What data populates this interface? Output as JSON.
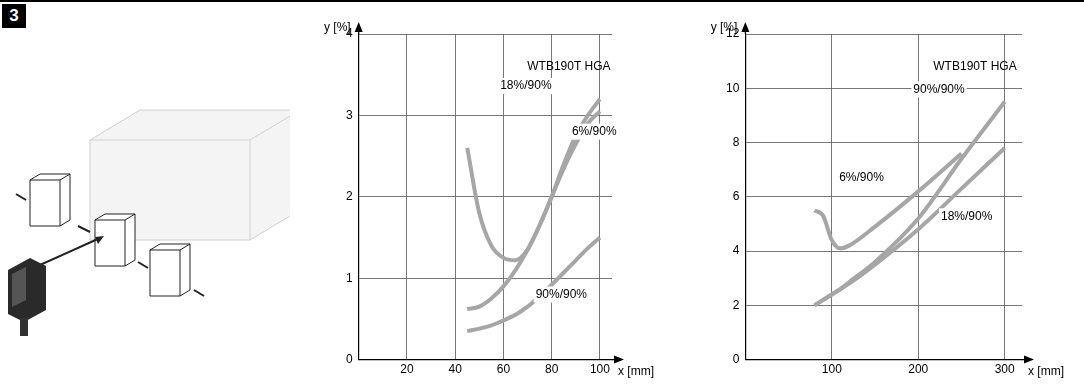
{
  "figure_label": "3",
  "chart_data": [
    {
      "type": "line",
      "title": "WTB190T HGA",
      "xlabel": "x [mm]",
      "ylabel": "y [%]",
      "x": [
        45,
        50,
        55,
        60,
        65,
        70,
        75,
        80,
        85,
        90,
        95,
        100
      ],
      "series": [
        {
          "name": "18%/90%",
          "color": "#a6a6a6",
          "values": [
            2.6,
            1.8,
            1.4,
            1.25,
            1.22,
            1.35,
            1.65,
            2.0,
            2.4,
            2.75,
            3.0,
            3.2
          ]
        },
        {
          "name": "6%/90%",
          "color": "#a6a6a6",
          "values": [
            0.62,
            0.65,
            0.75,
            0.9,
            1.1,
            1.35,
            1.65,
            2.0,
            2.35,
            2.65,
            2.9,
            3.05
          ]
        },
        {
          "name": "90%/90%",
          "color": "#a6a6a6",
          "values": [
            0.35,
            0.38,
            0.42,
            0.48,
            0.55,
            0.65,
            0.78,
            0.92,
            1.07,
            1.22,
            1.37,
            1.5
          ]
        }
      ],
      "xlim": [
        0,
        105
      ],
      "xticks": [
        20,
        40,
        60,
        80,
        100
      ],
      "ylim": [
        0,
        4
      ],
      "yticks": [
        0,
        1,
        2,
        3,
        4
      ],
      "grid": true
    },
    {
      "type": "line",
      "title": "WTB190T HGA",
      "xlabel": "x [mm]",
      "ylabel": "y [%]",
      "x": [
        80,
        90,
        100,
        110,
        120,
        150,
        200,
        250,
        300
      ],
      "series": [
        {
          "name": "90%/90%",
          "color": "#a6a6a6",
          "values": [
            2.0,
            2.2,
            2.4,
            2.6,
            2.85,
            3.6,
            5.2,
            7.4,
            9.5
          ]
        },
        {
          "name": "6%/90%",
          "color": "#a6a6a6",
          "values": [
            5.5,
            5.3,
            4.4,
            4.1,
            4.2,
            4.9,
            6.2,
            7.6,
            null
          ]
        },
        {
          "name": "18%/90%",
          "color": "#a6a6a6",
          "values": [
            2.0,
            2.2,
            2.4,
            2.6,
            2.8,
            3.5,
            4.8,
            6.3,
            7.8
          ]
        }
      ],
      "xlim": [
        0,
        320
      ],
      "xticks": [
        100,
        200,
        300
      ],
      "ylim": [
        0,
        12
      ],
      "yticks": [
        0,
        2,
        4,
        6,
        8,
        10,
        12
      ],
      "grid": true
    }
  ]
}
